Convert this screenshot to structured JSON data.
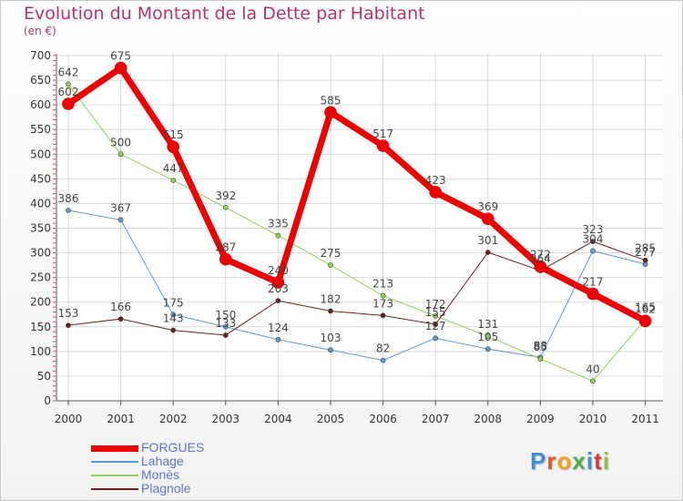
{
  "title": "Evolution du Montant de la Dette par Habitant",
  "subtitle": "(en €)",
  "logo": {
    "text": "Proxiti",
    "colors": [
      "#3f8fd8",
      "#e0562a",
      "#f3a21b",
      "#4fb04a",
      "#3f8fd8",
      "#d53a3a",
      "#8bc53f"
    ]
  },
  "chart_data": {
    "type": "line",
    "title": "Evolution du Montant de la Dette par Habitant",
    "ylabel": "(en €)",
    "xlabel": "",
    "categories": [
      "2000",
      "2001",
      "2002",
      "2003",
      "2004",
      "2005",
      "2006",
      "2007",
      "2008",
      "2009",
      "2010",
      "2011"
    ],
    "ylim": [
      0,
      700
    ],
    "yticks": [
      0,
      50,
      100,
      150,
      200,
      250,
      300,
      350,
      400,
      450,
      500,
      550,
      600,
      650,
      700
    ],
    "grid": true,
    "legend_position": "bottom-left",
    "series": [
      {
        "name": "Lahage",
        "color": "#5a9bd5",
        "width": 1,
        "marker": 2.6,
        "values": [
          386,
          367,
          175,
          150,
          124,
          103,
          82,
          127,
          105,
          88,
          304,
          277
        ],
        "labels": [
          "386",
          "367",
          "175",
          "150",
          "124",
          "103",
          "82",
          "127",
          "105",
          "88",
          "304",
          "277"
        ]
      },
      {
        "name": "Monès",
        "color": "#8fd24f",
        "width": 1,
        "marker": 2.6,
        "values": [
          642,
          500,
          447,
          392,
          335,
          275,
          213,
          172,
          131,
          85,
          40,
          165
        ],
        "labels": [
          "642",
          "500",
          "447",
          "392",
          "335",
          "275",
          "213",
          "172",
          "131",
          "85",
          "40",
          "165"
        ]
      },
      {
        "name": "Plagnole",
        "color": "#6b2020",
        "width": 1,
        "marker": 2.6,
        "values": [
          153,
          166,
          143,
          133,
          203,
          182,
          173,
          155,
          301,
          264,
          323,
          285
        ],
        "labels": [
          "153",
          "166",
          "143",
          "133",
          "203",
          "182",
          "173",
          "155",
          "301",
          "264",
          "323",
          "285"
        ]
      },
      {
        "name": "FORGUES",
        "color": "#ee0000",
        "width": 7,
        "marker": 6.5,
        "values": [
          602,
          675,
          515,
          287,
          240,
          585,
          517,
          423,
          369,
          272,
          217,
          162
        ],
        "labels": [
          "602",
          "675",
          "515",
          "287",
          "240",
          "585",
          "517",
          "423",
          "369",
          "272",
          "217",
          "162"
        ]
      }
    ],
    "legend_order": [
      "FORGUES",
      "Lahage",
      "Monès",
      "Plagnole"
    ]
  }
}
